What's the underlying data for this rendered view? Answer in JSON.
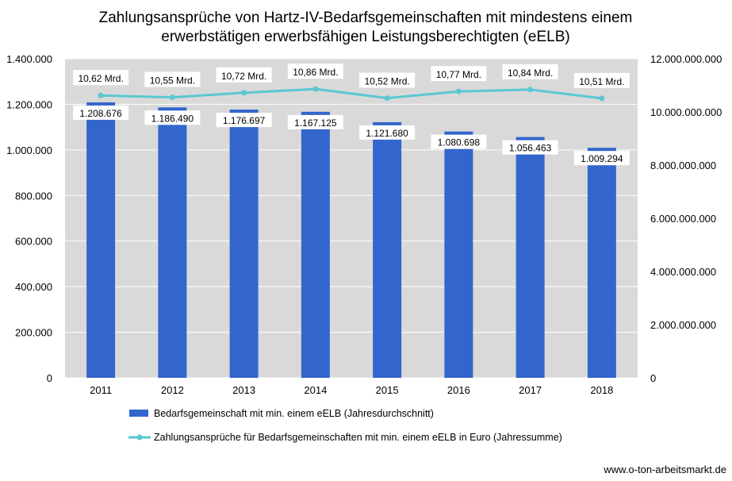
{
  "chart_data": {
    "type": "bar",
    "title": [
      "Zahlungsansprüche von Hartz-IV-Bedarfsgemeinschaften mit mindestens einem",
      "erwerbstätigen erwerbsfähigen Leistungsberechtigten (eELB)"
    ],
    "categories": [
      "2011",
      "2012",
      "2013",
      "2014",
      "2015",
      "2016",
      "2017",
      "2018"
    ],
    "series": [
      {
        "name": "Bedarfsgemeinschaft mit min. einem eELB (Jahresdurchschnitt)",
        "type": "bar",
        "axis": "left",
        "values": [
          1208676,
          1186490,
          1176697,
          1167125,
          1121680,
          1080698,
          1056463,
          1009294
        ],
        "labels": [
          "1.208.676",
          "1.186.490",
          "1.176.697",
          "1.167.125",
          "1.121.680",
          "1.080.698",
          "1.056.463",
          "1.009.294"
        ],
        "color": "#3366cc"
      },
      {
        "name": "Zahlungsansprüche für Bedarfsgemeinschaften mit min. einem eELB in Euro (Jahressumme)",
        "type": "line",
        "axis": "right",
        "values": [
          10620000000,
          10550000000,
          10720000000,
          10860000000,
          10520000000,
          10770000000,
          10840000000,
          10510000000
        ],
        "labels": [
          "10,62 Mrd.",
          "10,55 Mrd.",
          "10,72 Mrd.",
          "10,86 Mrd.",
          "10,52 Mrd.",
          "10,77 Mrd.",
          "10,84 Mrd.",
          "10,51 Mrd."
        ],
        "color": "#5ac8d2"
      }
    ],
    "left_axis": {
      "ylim": [
        0,
        1400000
      ],
      "ticks": [
        0,
        200000,
        400000,
        600000,
        800000,
        1000000,
        1200000,
        1400000
      ],
      "tick_labels": [
        "0",
        "200.000",
        "400.000",
        "600.000",
        "800.000",
        "1.000.000",
        "1.200.000",
        "1.400.000"
      ]
    },
    "right_axis": {
      "ylim": [
        0,
        12000000000
      ],
      "ticks": [
        0,
        2000000000,
        4000000000,
        6000000000,
        8000000000,
        10000000000,
        12000000000
      ],
      "tick_labels": [
        "0",
        "2.000.000.000",
        "4.000.000.000",
        "6.000.000.000",
        "8.000.000.000",
        "10.000.000.000",
        "12.000.000.000"
      ]
    },
    "plot_background": "#d9d9d9",
    "grid": "horizontal",
    "legend_position": "bottom"
  },
  "footer": "www.o-ton-arbeitsmarkt.de"
}
